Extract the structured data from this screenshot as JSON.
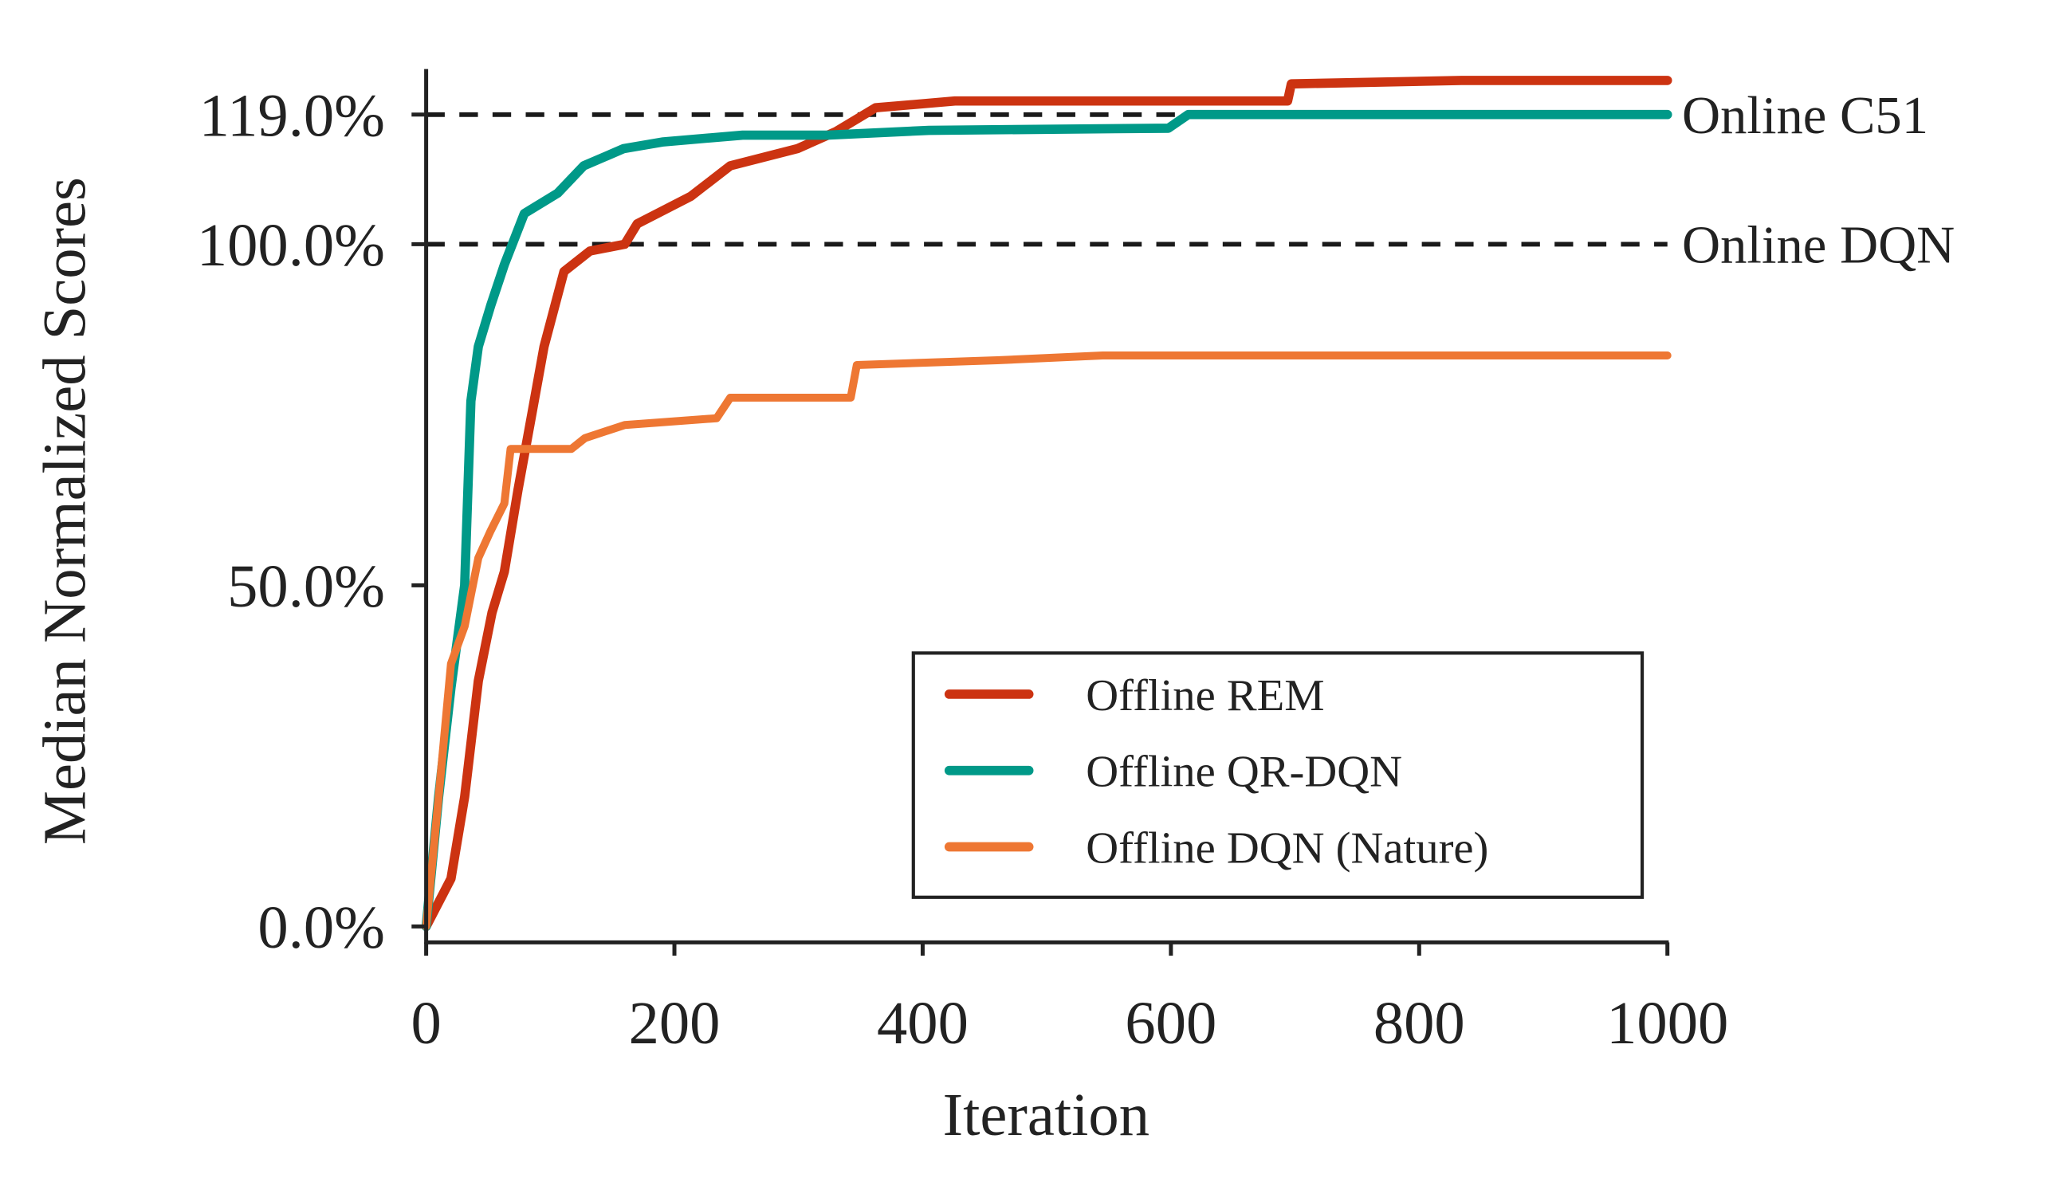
{
  "chart_data": {
    "type": "line",
    "title": "",
    "xlabel": "Iteration",
    "ylabel": "Median Normalized Scores",
    "xlim": [
      0,
      1000
    ],
    "ylim": [
      -2,
      125
    ],
    "grid": false,
    "x_ticks": [
      0,
      200,
      400,
      600,
      800,
      1000
    ],
    "x_tick_labels": [
      "0",
      "200",
      "400",
      "600",
      "800",
      "1000"
    ],
    "y_ticks": [
      0,
      50,
      100,
      119
    ],
    "y_tick_labels": [
      "0.0%",
      "50.0%",
      "100.0%",
      "119.0%"
    ],
    "reference_lines": [
      {
        "label": "Online C51",
        "value": 119,
        "color": "#1a1a1a",
        "style": "dashed"
      },
      {
        "label": "Online DQN",
        "value": 100,
        "color": "#1a1a1a",
        "style": "dashed"
      }
    ],
    "legend_placement": "lower-right",
    "series": [
      {
        "name": "Offline REM",
        "color": "#cc3311",
        "points": [
          [
            0,
            0
          ],
          [
            20,
            7
          ],
          [
            31,
            19
          ],
          [
            42,
            36
          ],
          [
            53,
            46
          ],
          [
            63,
            52
          ],
          [
            74,
            64
          ],
          [
            85,
            75
          ],
          [
            95,
            85
          ],
          [
            111,
            96
          ],
          [
            132,
            99
          ],
          [
            160,
            100
          ],
          [
            170,
            103
          ],
          [
            213,
            107
          ],
          [
            245,
            111.5
          ],
          [
            299,
            114
          ],
          [
            330,
            116.5
          ],
          [
            362,
            120
          ],
          [
            426,
            121
          ],
          [
            694,
            121
          ],
          [
            697,
            123.5
          ],
          [
            834,
            124
          ],
          [
            1000,
            124
          ]
        ]
      },
      {
        "name": "Offline QR-DQN",
        "color": "#009988",
        "points": [
          [
            0,
            0
          ],
          [
            10,
            19
          ],
          [
            20,
            35
          ],
          [
            31,
            50
          ],
          [
            36,
            77
          ],
          [
            42,
            85
          ],
          [
            52,
            91
          ],
          [
            63,
            97
          ],
          [
            79,
            104.5
          ],
          [
            106,
            107.5
          ],
          [
            127,
            111.5
          ],
          [
            159,
            114
          ],
          [
            191,
            115
          ],
          [
            255,
            116
          ],
          [
            323,
            116
          ],
          [
            405,
            116.7
          ],
          [
            598,
            117
          ],
          [
            614,
            119
          ],
          [
            1000,
            119
          ]
        ]
      },
      {
        "name": "Offline DQN (Nature)",
        "color": "#ee7733",
        "points": [
          [
            0,
            0
          ],
          [
            10,
            19
          ],
          [
            20,
            38.5
          ],
          [
            31,
            44
          ],
          [
            42,
            54
          ],
          [
            52,
            58
          ],
          [
            63,
            62
          ],
          [
            68,
            70
          ],
          [
            117,
            70
          ],
          [
            128,
            71.6
          ],
          [
            160,
            73.5
          ],
          [
            234,
            74.5
          ],
          [
            245,
            77.5
          ],
          [
            342,
            77.5
          ],
          [
            347,
            82.3
          ],
          [
            460,
            83
          ],
          [
            545,
            83.7
          ],
          [
            1000,
            83.7
          ]
        ]
      }
    ]
  }
}
